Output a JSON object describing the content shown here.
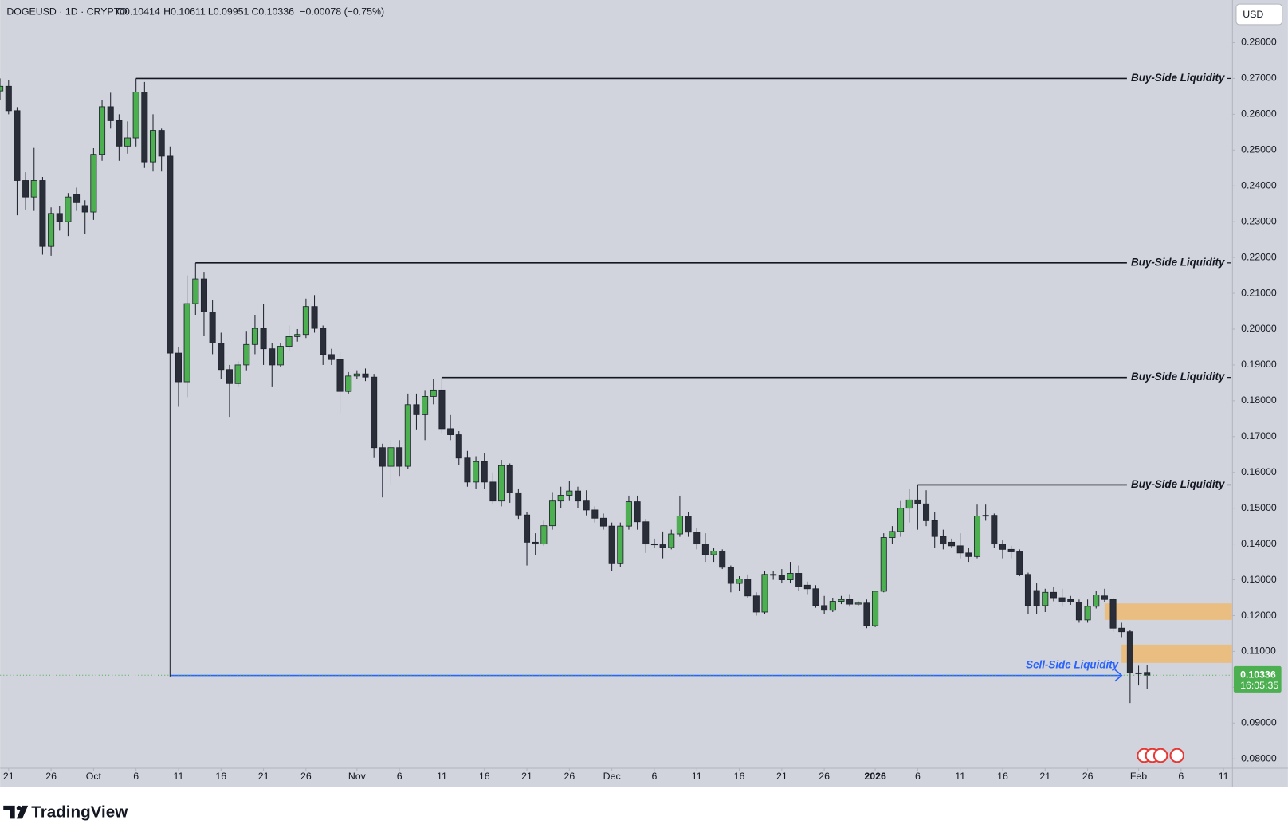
{
  "chart_data": {
    "type": "candlestick",
    "title": "DOGEUSD · 1D · CRYPTO",
    "ohlc_labels": [
      "O0.10414",
      "H0.10611",
      "L0.09951",
      "C0.10336"
    ],
    "change_label": "−0.00078 (−0.75%)",
    "currency": "USD",
    "countdown": "16:05:35",
    "up_color": "#4caf50",
    "down_color": "#2a2e39",
    "border_color": "#1e222d",
    "categories": [
      "09-20",
      "09-21",
      "09-22",
      "09-23",
      "09-24",
      "09-25",
      "09-26",
      "09-27",
      "09-28",
      "09-29",
      "09-30",
      "10-01",
      "10-02",
      "10-03",
      "10-04",
      "10-05",
      "10-06",
      "10-07",
      "10-08",
      "10-09",
      "10-10",
      "10-11",
      "10-12",
      "10-13",
      "10-14",
      "10-15",
      "10-16",
      "10-17",
      "10-18",
      "10-19",
      "10-20",
      "10-21",
      "10-22",
      "10-23",
      "10-24",
      "10-25",
      "10-26",
      "10-27",
      "10-28",
      "10-29",
      "10-30",
      "10-31",
      "11-01",
      "11-02",
      "11-03",
      "11-04",
      "11-05",
      "11-06",
      "11-07",
      "11-08",
      "11-09",
      "11-10",
      "11-11",
      "11-12",
      "11-13",
      "11-14",
      "11-15",
      "11-16",
      "11-17",
      "11-18",
      "11-19",
      "11-20",
      "11-21",
      "11-22",
      "11-23",
      "11-24",
      "11-25",
      "11-26",
      "11-27",
      "11-28",
      "11-29",
      "11-30",
      "12-01",
      "12-02",
      "12-03",
      "12-04",
      "12-05",
      "12-06",
      "12-07",
      "12-08",
      "12-09",
      "12-10",
      "12-11",
      "12-12",
      "12-13",
      "12-14",
      "12-15",
      "12-16",
      "12-17",
      "12-18",
      "12-19",
      "12-20",
      "12-21",
      "12-22",
      "12-23",
      "12-24",
      "12-25",
      "12-26",
      "12-27",
      "12-28",
      "12-29",
      "12-30",
      "12-31",
      "2026-01-01",
      "2026-01-02",
      "2026-01-03",
      "2026-01-04",
      "2026-01-05",
      "2026-01-06",
      "2026-01-07",
      "2026-01-08",
      "2026-01-09",
      "2026-01-10",
      "2026-01-11",
      "2026-01-12",
      "2026-01-13",
      "2026-01-14",
      "2026-01-15",
      "2026-01-16",
      "2026-01-17",
      "2026-01-18",
      "2026-01-19",
      "2026-01-20",
      "2026-01-21",
      "2026-01-22",
      "2026-01-23",
      "2026-01-24",
      "2026-01-25",
      "2026-01-26",
      "2026-01-27",
      "2026-01-28",
      "2026-01-29",
      "2026-01-30",
      "2026-01-31",
      "2026-02-01",
      "2026-02-02"
    ],
    "open": [
      0.2665,
      0.2678,
      0.261,
      0.2415,
      0.2369,
      0.2415,
      0.2231,
      0.2323,
      0.23,
      0.2375,
      0.2345,
      0.2327,
      0.2488,
      0.2621,
      0.2582,
      0.2511,
      0.2534,
      0.2662,
      0.2467,
      0.2555,
      0.2483,
      0.1933,
      0.1853,
      0.2071,
      0.214,
      0.2048,
      0.1961,
      0.1887,
      0.1848,
      0.19,
      0.1957,
      0.2002,
      0.1945,
      0.19,
      0.1952,
      0.1979,
      0.1985,
      0.2063,
      0.2002,
      0.1929,
      0.1915,
      0.1826,
      0.1869,
      0.1875,
      0.1866,
      0.1669,
      0.1617,
      0.1669,
      0.1617,
      0.1789,
      0.1761,
      0.1812,
      0.183,
      0.1722,
      0.1705,
      0.164,
      0.1573,
      0.163,
      0.1573,
      0.152,
      0.1619,
      0.1543,
      0.1481,
      0.1405,
      0.14,
      0.1451,
      0.152,
      0.1536,
      0.1548,
      0.152,
      0.1495,
      0.1472,
      0.145,
      0.1345,
      0.145,
      0.1518,
      0.1462,
      0.14,
      0.1398,
      0.139,
      0.1428,
      0.1478,
      0.1433,
      0.14,
      0.137,
      0.138,
      0.1335,
      0.129,
      0.1302,
      0.1255,
      0.121,
      0.1315,
      0.1313,
      0.13,
      0.1318,
      0.1285,
      0.1275,
      0.1228,
      0.1215,
      0.124,
      0.1245,
      0.1232,
      0.1235,
      0.1172,
      0.1268,
      0.1418,
      0.1435,
      0.15,
      0.1523,
      0.1512,
      0.1465,
      0.1421,
      0.1405,
      0.1395,
      0.1375,
      0.1365,
      0.1478,
      0.148,
      0.14,
      0.1385,
      0.1378,
      0.1315,
      0.127,
      0.1228,
      0.1265,
      0.125,
      0.1245,
      0.1238,
      0.1188,
      0.1226,
      0.1255,
      0.1245,
      0.1165,
      0.1155,
      0.104,
      0.10414
    ],
    "high": [
      0.27,
      0.2695,
      0.262,
      0.2438,
      0.2506,
      0.2425,
      0.234,
      0.2345,
      0.238,
      0.2395,
      0.236,
      0.2505,
      0.264,
      0.266,
      0.26,
      0.258,
      0.27,
      0.269,
      0.26,
      0.256,
      0.251,
      0.195,
      0.215,
      0.2185,
      0.216,
      0.208,
      0.199,
      0.19,
      0.191,
      0.1995,
      0.204,
      0.207,
      0.196,
      0.196,
      0.201,
      0.2,
      0.2085,
      0.2095,
      0.201,
      0.1945,
      0.1935,
      0.188,
      0.1885,
      0.189,
      0.1875,
      0.168,
      0.169,
      0.169,
      0.182,
      0.182,
      0.183,
      0.186,
      0.1865,
      0.176,
      0.1715,
      0.166,
      0.1645,
      0.1655,
      0.16,
      0.1635,
      0.1625,
      0.1555,
      0.149,
      0.143,
      0.1465,
      0.1545,
      0.156,
      0.1575,
      0.156,
      0.155,
      0.1505,
      0.1485,
      0.146,
      0.146,
      0.1535,
      0.1535,
      0.147,
      0.1415,
      0.1435,
      0.144,
      0.1535,
      0.149,
      0.1445,
      0.143,
      0.139,
      0.1385,
      0.134,
      0.131,
      0.1315,
      0.1265,
      0.1325,
      0.1325,
      0.133,
      0.135,
      0.134,
      0.1295,
      0.1285,
      0.1255,
      0.125,
      0.1255,
      0.126,
      0.124,
      0.1245,
      0.127,
      0.143,
      0.145,
      0.152,
      0.1555,
      0.1565,
      0.155,
      0.149,
      0.144,
      0.1415,
      0.143,
      0.139,
      0.151,
      0.151,
      0.1485,
      0.141,
      0.1395,
      0.1385,
      0.132,
      0.129,
      0.1275,
      0.128,
      0.1275,
      0.1255,
      0.1245,
      0.1245,
      0.1268,
      0.1275,
      0.125,
      0.118,
      0.116,
      0.106,
      0.10611
    ],
    "low": [
      0.264,
      0.26,
      0.2318,
      0.2334,
      0.233,
      0.2208,
      0.2205,
      0.2275,
      0.226,
      0.233,
      0.2265,
      0.2305,
      0.247,
      0.256,
      0.247,
      0.249,
      0.251,
      0.245,
      0.244,
      0.244,
      0.103,
      0.1783,
      0.181,
      0.204,
      0.198,
      0.193,
      0.186,
      0.1755,
      0.184,
      0.1885,
      0.193,
      0.19,
      0.184,
      0.1895,
      0.194,
      0.1965,
      0.1975,
      0.199,
      0.19,
      0.19,
      0.1765,
      0.182,
      0.186,
      0.1855,
      0.164,
      0.153,
      0.1565,
      0.159,
      0.161,
      0.172,
      0.169,
      0.179,
      0.171,
      0.169,
      0.162,
      0.156,
      0.1555,
      0.1555,
      0.151,
      0.1505,
      0.1515,
      0.147,
      0.134,
      0.137,
      0.1395,
      0.144,
      0.15,
      0.152,
      0.15,
      0.148,
      0.146,
      0.144,
      0.1325,
      0.1335,
      0.144,
      0.144,
      0.1375,
      0.139,
      0.136,
      0.1385,
      0.142,
      0.142,
      0.1385,
      0.135,
      0.135,
      0.133,
      0.1265,
      0.127,
      0.125,
      0.12,
      0.1205,
      0.13,
      0.129,
      0.129,
      0.127,
      0.126,
      0.1222,
      0.1205,
      0.121,
      0.1232,
      0.1225,
      0.1228,
      0.1165,
      0.1168,
      0.1265,
      0.14,
      0.142,
      0.146,
      0.144,
      0.145,
      0.139,
      0.1385,
      0.139,
      0.136,
      0.135,
      0.136,
      0.1465,
      0.139,
      0.136,
      0.136,
      0.131,
      0.1205,
      0.1205,
      0.121,
      0.124,
      0.1225,
      0.123,
      0.118,
      0.118,
      0.122,
      0.1238,
      0.1155,
      0.114,
      0.0956,
      0.1005,
      0.09951
    ],
    "close": [
      0.2678,
      0.261,
      0.2415,
      0.2369,
      0.2415,
      0.2231,
      0.2323,
      0.23,
      0.2369,
      0.2353,
      0.2327,
      0.2488,
      0.2621,
      0.2582,
      0.2511,
      0.2534,
      0.2662,
      0.2467,
      0.2555,
      0.2483,
      0.1933,
      0.1853,
      0.2071,
      0.214,
      0.2048,
      0.1961,
      0.1887,
      0.1848,
      0.19,
      0.1957,
      0.2002,
      0.1945,
      0.19,
      0.1952,
      0.1979,
      0.1985,
      0.2063,
      0.2002,
      0.1929,
      0.1915,
      0.1826,
      0.1869,
      0.1875,
      0.1866,
      0.1669,
      0.1617,
      0.1669,
      0.1617,
      0.1789,
      0.1761,
      0.1812,
      0.183,
      0.1722,
      0.1705,
      0.164,
      0.1573,
      0.163,
      0.1573,
      0.152,
      0.1619,
      0.1543,
      0.1481,
      0.1405,
      0.14,
      0.1451,
      0.152,
      0.1536,
      0.1548,
      0.152,
      0.1495,
      0.1472,
      0.145,
      0.1345,
      0.145,
      0.1518,
      0.1462,
      0.14,
      0.1398,
      0.139,
      0.1428,
      0.1478,
      0.1433,
      0.14,
      0.137,
      0.138,
      0.1335,
      0.129,
      0.1302,
      0.1255,
      0.121,
      0.1315,
      0.1313,
      0.13,
      0.1318,
      0.128,
      0.1275,
      0.1228,
      0.1215,
      0.124,
      0.1245,
      0.1232,
      0.1235,
      0.1172,
      0.1268,
      0.1418,
      0.1435,
      0.15,
      0.1523,
      0.1512,
      0.1465,
      0.1421,
      0.14,
      0.1395,
      0.1375,
      0.1365,
      0.1478,
      0.148,
      0.14,
      0.1385,
      0.1378,
      0.1315,
      0.1228,
      0.1228,
      0.1265,
      0.125,
      0.124,
      0.1238,
      0.1188,
      0.1226,
      0.1258,
      0.1245,
      0.1165,
      0.1155,
      0.104,
      0.1038,
      0.10336
    ],
    "xlim": [
      "09-20",
      "2026-02-12"
    ],
    "xticks": [
      {
        "value": "09-21",
        "label": "21"
      },
      {
        "value": "09-26",
        "label": "26"
      },
      {
        "value": "10-01",
        "label": "Oct"
      },
      {
        "value": "10-06",
        "label": "6"
      },
      {
        "value": "10-11",
        "label": "11"
      },
      {
        "value": "10-16",
        "label": "16"
      },
      {
        "value": "10-21",
        "label": "21"
      },
      {
        "value": "10-26",
        "label": "26"
      },
      {
        "value": "11-01",
        "label": "Nov"
      },
      {
        "value": "11-06",
        "label": "6"
      },
      {
        "value": "11-11",
        "label": "11"
      },
      {
        "value": "11-16",
        "label": "16"
      },
      {
        "value": "11-21",
        "label": "21"
      },
      {
        "value": "11-26",
        "label": "26"
      },
      {
        "value": "12-01",
        "label": "Dec"
      },
      {
        "value": "12-06",
        "label": "6"
      },
      {
        "value": "12-11",
        "label": "11"
      },
      {
        "value": "12-16",
        "label": "16"
      },
      {
        "value": "12-21",
        "label": "21"
      },
      {
        "value": "12-26",
        "label": "26"
      },
      {
        "value": "2026-01-01",
        "label": "2026"
      },
      {
        "value": "2026-01-06",
        "label": "6"
      },
      {
        "value": "2026-01-11",
        "label": "11"
      },
      {
        "value": "2026-01-16",
        "label": "16"
      },
      {
        "value": "2026-01-21",
        "label": "21"
      },
      {
        "value": "2026-01-26",
        "label": "26"
      },
      {
        "value": "2026-02-01",
        "label": "Feb"
      },
      {
        "value": "2026-02-06",
        "label": "6"
      },
      {
        "value": "2026-02-11",
        "label": "11"
      }
    ],
    "ylim": [
      0.0775,
      0.2919
    ],
    "yticks": [
      {
        "value": 0.08,
        "label": "0.08000"
      },
      {
        "value": 0.09,
        "label": "0.09000"
      },
      {
        "value": 0.1,
        "label": "0.10000"
      },
      {
        "value": 0.11,
        "label": "0.11000"
      },
      {
        "value": 0.12,
        "label": "0.12000"
      },
      {
        "value": 0.13,
        "label": "0.13000"
      },
      {
        "value": 0.14,
        "label": "0.14000"
      },
      {
        "value": 0.15,
        "label": "0.15000"
      },
      {
        "value": 0.16,
        "label": "0.16000"
      },
      {
        "value": 0.17,
        "label": "0.17000"
      },
      {
        "value": 0.18,
        "label": "0.18000"
      },
      {
        "value": 0.19,
        "label": "0.19000"
      },
      {
        "value": 0.2,
        "label": "0.20000"
      },
      {
        "value": 0.21,
        "label": "0.21000"
      },
      {
        "value": 0.22,
        "label": "0.22000"
      },
      {
        "value": 0.23,
        "label": "0.23000"
      },
      {
        "value": 0.24,
        "label": "0.24000"
      },
      {
        "value": 0.25,
        "label": "0.25000"
      },
      {
        "value": 0.26,
        "label": "0.26000"
      },
      {
        "value": 0.27,
        "label": "0.27000"
      },
      {
        "value": 0.28,
        "label": "0.28000"
      }
    ],
    "grid": false,
    "buy_side_levels": [
      {
        "label": "Buy-Side Liquidity",
        "value": 0.27,
        "start": "10-06"
      },
      {
        "label": "Buy-Side Liquidity",
        "value": 0.2185,
        "start": "10-13"
      },
      {
        "label": "Buy-Side Liquidity",
        "value": 0.1865,
        "start": "11-11"
      },
      {
        "label": "Buy-Side Liquidity",
        "value": 0.1565,
        "start": "2026-01-06"
      }
    ],
    "sell_side_level": {
      "label": "Sell-Side Liquidity",
      "value": 0.1033,
      "start": "10-10",
      "end": "2026-01-30",
      "color": "#2962ff"
    },
    "zones": [
      {
        "top": 0.1234,
        "bottom": 0.1188,
        "start": "2026-01-28"
      },
      {
        "top": 0.1119,
        "bottom": 0.1068,
        "start": "2026-01-30"
      }
    ],
    "zone_color": "#f0b66a"
  },
  "footer": {
    "logo": "TradingView"
  }
}
